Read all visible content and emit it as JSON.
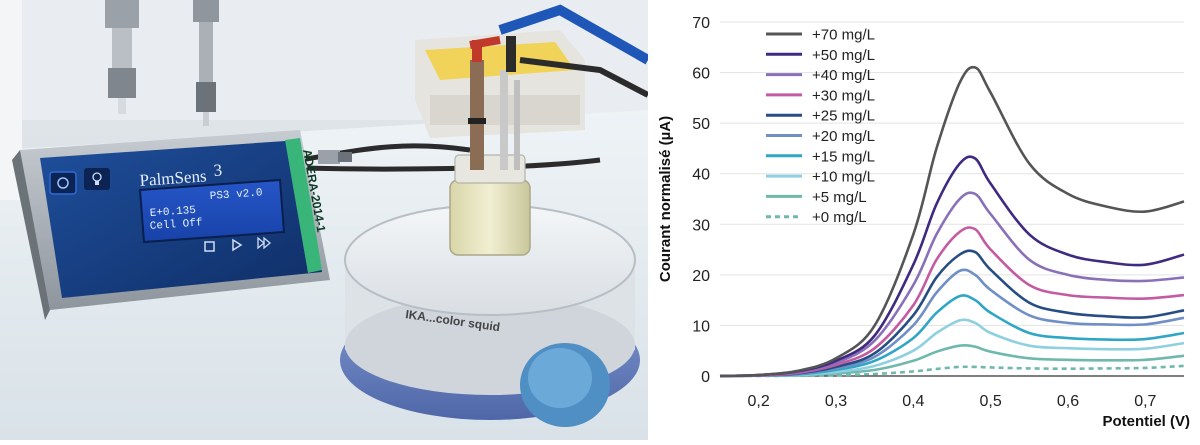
{
  "photo": {
    "brand_label": "PalmSens",
    "brand_superscript": "3",
    "screen_lines": [
      "PS3 v2.0",
      "E+0.135",
      "Cell Off"
    ],
    "side_label": "ADERA-2014-1",
    "stirrer_label": "IKA...color squid",
    "icons": [
      "power-icon",
      "light-bulb-icon",
      "stop-icon",
      "play-icon",
      "skip-forward-icon"
    ]
  },
  "chart_data": {
    "type": "line",
    "xlabel": "Potentiel (V)",
    "ylabel": "Courant normalisé (µA)",
    "xlim": [
      0.15,
      0.75
    ],
    "ylim": [
      0,
      70
    ],
    "xticks": [
      "0,2",
      "0,3",
      "0,4",
      "0,5",
      "0,6",
      "0,7"
    ],
    "xtick_values": [
      0.2,
      0.3,
      0.4,
      0.5,
      0.6,
      0.7
    ],
    "yticks": [
      "0",
      "10",
      "20",
      "30",
      "40",
      "50",
      "60",
      "70"
    ],
    "ytick_values": [
      0,
      10,
      20,
      30,
      40,
      50,
      60,
      70
    ],
    "grid": true,
    "legend_position": "top-left",
    "x": [
      0.15,
      0.2,
      0.25,
      0.3,
      0.35,
      0.4,
      0.43,
      0.46,
      0.48,
      0.5,
      0.55,
      0.6,
      0.65,
      0.7,
      0.75
    ],
    "series": [
      {
        "name": "+70 mg/L",
        "color": "#555555",
        "dashed": false,
        "values": [
          0,
          0.2,
          1,
          3.5,
          10,
          28,
          45,
          58,
          61,
          56,
          42,
          36,
          33.5,
          32.5,
          34.5
        ]
      },
      {
        "name": "+50 mg/L",
        "color": "#3f2a80",
        "dashed": false,
        "values": [
          0,
          0.2,
          0.9,
          3,
          8,
          22,
          34,
          42,
          43,
          38,
          28,
          24,
          22.5,
          22,
          24
        ]
      },
      {
        "name": "+40 mg/L",
        "color": "#8a70b8",
        "dashed": false,
        "values": [
          0,
          0.2,
          0.8,
          2.6,
          7,
          18,
          28,
          35,
          36,
          32,
          23,
          20,
          19,
          18.8,
          19.5
        ]
      },
      {
        "name": "+30 mg/L",
        "color": "#c45aa2",
        "dashed": false,
        "values": [
          0,
          0.1,
          0.6,
          2.2,
          5.5,
          14,
          23,
          28.5,
          29,
          25,
          18,
          16,
          15.5,
          15.3,
          16
        ]
      },
      {
        "name": "+25 mg/L",
        "color": "#274d85",
        "dashed": false,
        "values": [
          0,
          0.1,
          0.5,
          1.8,
          4.5,
          12,
          19.5,
          24,
          24.5,
          21,
          14.5,
          12.5,
          11.8,
          11.6,
          13
        ]
      },
      {
        "name": "+20 mg/L",
        "color": "#6f8fc6",
        "dashed": false,
        "values": [
          0,
          0.1,
          0.4,
          1.5,
          3.8,
          10,
          16.5,
          20.8,
          20,
          17,
          12,
          10.5,
          10.2,
          10.2,
          11.5
        ]
      },
      {
        "name": "+15 mg/L",
        "color": "#2fa6c6",
        "dashed": false,
        "values": [
          0,
          0.1,
          0.3,
          1.2,
          3,
          7.5,
          12.5,
          15.8,
          15,
          12.5,
          8.5,
          7.5,
          7.2,
          7.3,
          8.5
        ]
      },
      {
        "name": "+10 mg/L",
        "color": "#8fd0e0",
        "dashed": false,
        "values": [
          0,
          0.05,
          0.2,
          0.8,
          2,
          5,
          8.5,
          11,
          10.5,
          8.5,
          6,
          5.5,
          5.3,
          5.4,
          6.5
        ]
      },
      {
        "name": "+5 mg/L",
        "color": "#6fb8ad",
        "dashed": false,
        "values": [
          0,
          0.05,
          0.1,
          0.5,
          1.2,
          3,
          4.8,
          6,
          5.8,
          4.8,
          3.5,
          3.2,
          3.1,
          3.2,
          4
        ]
      },
      {
        "name": "+0 mg/L",
        "color": "#6fb8ad",
        "dashed": true,
        "values": [
          0,
          0,
          0.05,
          0.15,
          0.4,
          0.9,
          1.4,
          1.8,
          1.8,
          1.7,
          1.5,
          1.45,
          1.5,
          1.6,
          2
        ]
      }
    ]
  }
}
